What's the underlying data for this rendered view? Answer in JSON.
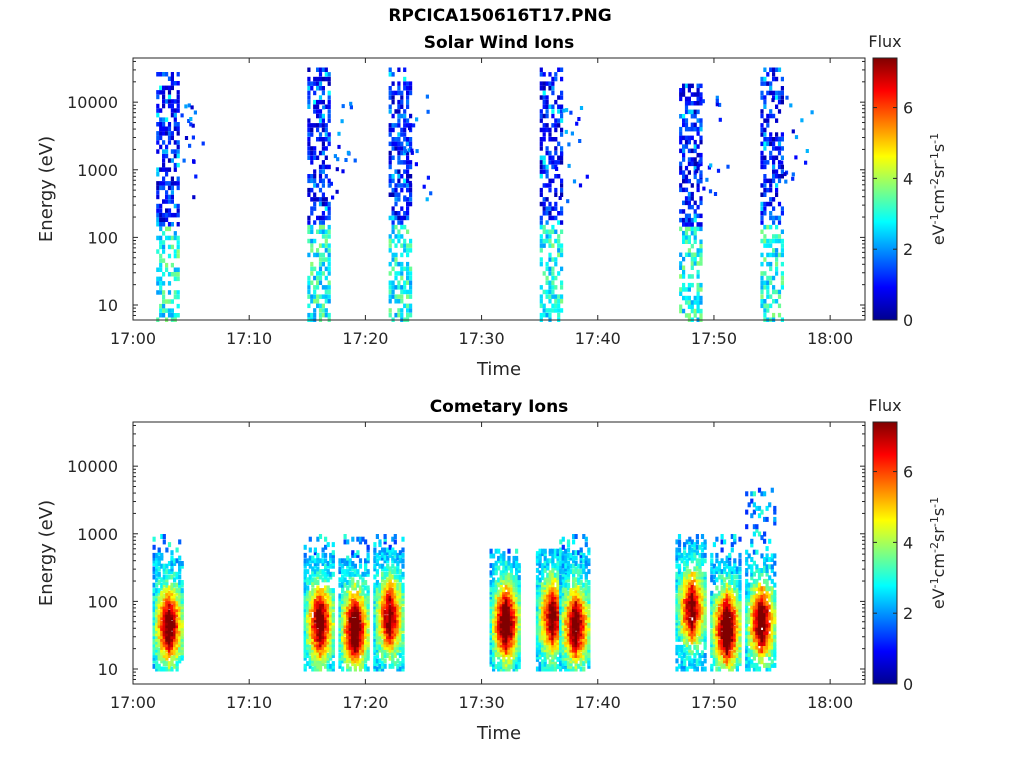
{
  "figure_title": "RPCICA150616T17.PNG",
  "chart_data": [
    {
      "type": "heatmap",
      "title": "Solar Wind Ions",
      "xlabel": "Time",
      "ylabel": "Energy (eV)",
      "x_ticks": [
        "17:00",
        "17:10",
        "17:20",
        "17:30",
        "17:40",
        "17:50",
        "18:00"
      ],
      "y_ticks": [
        "10",
        "100",
        "1000",
        "10000"
      ],
      "xlim": [
        "17:00",
        "18:03"
      ],
      "ylim": [
        6,
        45000
      ],
      "y_scale": "log",
      "colorbar": {
        "label": "Flux",
        "units": "eV-1cm-2sr-1s-1",
        "ticks": [
          "0",
          "2",
          "4",
          "6"
        ],
        "range": [
          0,
          7.4
        ],
        "colormap": "jet"
      },
      "bursts": [
        {
          "time": "17:03",
          "energy_range": [
            6,
            30000
          ],
          "flux_range": [
            0.5,
            3
          ]
        },
        {
          "time": "17:16",
          "energy_range": [
            6,
            35000
          ],
          "flux_range": [
            0.5,
            3
          ]
        },
        {
          "time": "17:23",
          "energy_range": [
            6,
            35000
          ],
          "flux_range": [
            0.5,
            3
          ]
        },
        {
          "time": "17:36",
          "energy_range": [
            6,
            35000
          ],
          "flux_range": [
            0.5,
            3
          ]
        },
        {
          "time": "17:48",
          "energy_range": [
            6,
            20000
          ],
          "flux_range": [
            0.5,
            3
          ]
        },
        {
          "time": "17:55",
          "energy_range": [
            6,
            35000
          ],
          "flux_range": [
            0.5,
            3
          ]
        }
      ]
    },
    {
      "type": "heatmap",
      "title": "Cometary Ions",
      "xlabel": "Time",
      "ylabel": "Energy (eV)",
      "x_ticks": [
        "17:00",
        "17:10",
        "17:20",
        "17:30",
        "17:40",
        "17:50",
        "18:00"
      ],
      "y_ticks": [
        "10",
        "100",
        "1000",
        "10000"
      ],
      "xlim": [
        "17:00",
        "18:03"
      ],
      "ylim": [
        6,
        45000
      ],
      "y_scale": "log",
      "colorbar": {
        "label": "Flux",
        "units": "eV-1cm-2sr-1s-1",
        "ticks": [
          "0",
          "2",
          "4",
          "6"
        ],
        "range": [
          0,
          7.4
        ],
        "colormap": "jet"
      },
      "bursts": [
        {
          "time": "17:03",
          "energy_range": [
            10,
            1000
          ],
          "peak_energy": 45,
          "peak_flux": 6.5
        },
        {
          "time": "17:16",
          "energy_range": [
            10,
            1000
          ],
          "peak_energy": 50,
          "peak_flux": 6.5
        },
        {
          "time": "17:19",
          "energy_range": [
            10,
            1000
          ],
          "peak_energy": 40,
          "peak_flux": 7
        },
        {
          "time": "17:22",
          "energy_range": [
            10,
            1000
          ],
          "peak_energy": 60,
          "peak_flux": 6
        },
        {
          "time": "17:32",
          "energy_range": [
            10,
            600
          ],
          "peak_energy": 50,
          "peak_flux": 7
        },
        {
          "time": "17:36",
          "energy_range": [
            10,
            600
          ],
          "peak_energy": 60,
          "peak_flux": 6
        },
        {
          "time": "17:38",
          "energy_range": [
            10,
            1000
          ],
          "peak_energy": 45,
          "peak_flux": 6.5
        },
        {
          "time": "17:48",
          "energy_range": [
            10,
            1000
          ],
          "peak_energy": 80,
          "peak_flux": 6
        },
        {
          "time": "17:51",
          "energy_range": [
            10,
            1000
          ],
          "peak_energy": 40,
          "peak_flux": 7.2
        },
        {
          "time": "17:54",
          "energy_range": [
            10,
            5000
          ],
          "peak_energy": 50,
          "peak_flux": 6.5
        }
      ]
    }
  ]
}
